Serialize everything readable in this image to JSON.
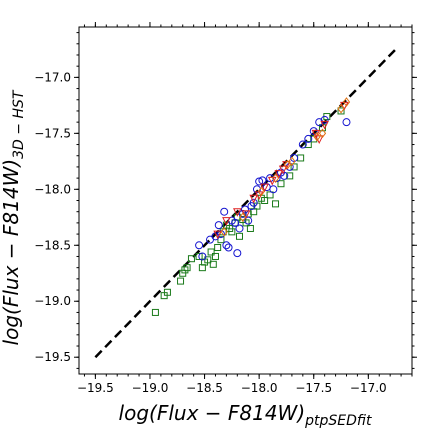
{
  "chart_data": {
    "type": "scatter",
    "title": "",
    "xlabel": "log(Flux − F814W)",
    "xlabel_subscript": "ptpSEDfit",
    "ylabel": "log(Flux − F814W)",
    "ylabel_subscript": "3D − HST",
    "xlim": [
      -19.65,
      -16.6
    ],
    "ylim": [
      -19.65,
      -16.55
    ],
    "xticks": [
      -19.5,
      -19.0,
      -18.5,
      -18.0,
      -17.5,
      -17.0
    ],
    "xtick_labels": [
      "−19.5",
      "−19.0",
      "−18.5",
      "−18.0",
      "−17.5",
      "−17.0"
    ],
    "yticks": [
      -19.5,
      -19.0,
      -18.5,
      -18.0,
      -17.5,
      -17.0
    ],
    "ytick_labels": [
      "−19.5",
      "−19.0",
      "−18.5",
      "−18.0",
      "−17.5",
      "−17.0"
    ],
    "grid": false,
    "reference_line": {
      "style": "dashed",
      "color": "#000000",
      "x": [
        -19.5,
        -16.75
      ],
      "y": [
        -19.5,
        -16.75
      ]
    },
    "series": [
      {
        "marker": "square",
        "color": "#1a7a1a",
        "points": [
          [
            -18.95,
            -19.1
          ],
          [
            -18.87,
            -18.95
          ],
          [
            -18.84,
            -18.92
          ],
          [
            -18.72,
            -18.82
          ],
          [
            -18.7,
            -18.75
          ],
          [
            -18.68,
            -18.72
          ],
          [
            -18.66,
            -18.7
          ],
          [
            -18.62,
            -18.62
          ],
          [
            -18.55,
            -18.6
          ],
          [
            -18.52,
            -18.7
          ],
          [
            -18.5,
            -18.65
          ],
          [
            -18.47,
            -18.63
          ],
          [
            -18.44,
            -18.56
          ],
          [
            -18.42,
            -18.67
          ],
          [
            -18.4,
            -18.6
          ],
          [
            -18.38,
            -18.52
          ],
          [
            -18.35,
            -18.45
          ],
          [
            -18.33,
            -18.38
          ],
          [
            -18.3,
            -18.32
          ],
          [
            -18.27,
            -18.35
          ],
          [
            -18.25,
            -18.38
          ],
          [
            -18.22,
            -18.3
          ],
          [
            -18.2,
            -18.25
          ],
          [
            -18.18,
            -18.42
          ],
          [
            -18.15,
            -18.27
          ],
          [
            -18.12,
            -18.3
          ],
          [
            -18.1,
            -18.22
          ],
          [
            -18.08,
            -18.35
          ],
          [
            -18.05,
            -18.2
          ],
          [
            -18.02,
            -18.15
          ],
          [
            -17.98,
            -18.08
          ],
          [
            -17.95,
            -18.1
          ],
          [
            -17.9,
            -18.05
          ],
          [
            -17.85,
            -18.13
          ],
          [
            -17.8,
            -17.95
          ],
          [
            -17.72,
            -17.88
          ],
          [
            -17.68,
            -17.8
          ],
          [
            -17.62,
            -17.72
          ],
          [
            -17.55,
            -17.6
          ],
          [
            -17.5,
            -17.55
          ],
          [
            -17.42,
            -17.45
          ],
          [
            -17.38,
            -17.35
          ],
          [
            -17.25,
            -17.3
          ]
        ]
      },
      {
        "marker": "circle",
        "color": "#1515d0",
        "points": [
          [
            -18.55,
            -18.5
          ],
          [
            -18.52,
            -18.6
          ],
          [
            -18.45,
            -18.45
          ],
          [
            -18.4,
            -18.42
          ],
          [
            -18.37,
            -18.32
          ],
          [
            -18.35,
            -18.4
          ],
          [
            -18.32,
            -18.2
          ],
          [
            -18.3,
            -18.5
          ],
          [
            -18.28,
            -18.52
          ],
          [
            -18.25,
            -18.28
          ],
          [
            -18.22,
            -18.3
          ],
          [
            -18.2,
            -18.57
          ],
          [
            -18.18,
            -18.35
          ],
          [
            -18.15,
            -18.22
          ],
          [
            -18.13,
            -18.18
          ],
          [
            -18.1,
            -18.28
          ],
          [
            -18.07,
            -18.15
          ],
          [
            -18.05,
            -18.12
          ],
          [
            -18.02,
            -18.0
          ],
          [
            -18.0,
            -17.93
          ],
          [
            -17.97,
            -17.92
          ],
          [
            -17.93,
            -17.98
          ],
          [
            -17.9,
            -17.9
          ],
          [
            -17.87,
            -18.0
          ],
          [
            -17.84,
            -17.9
          ],
          [
            -17.8,
            -17.85
          ],
          [
            -17.77,
            -17.88
          ],
          [
            -17.72,
            -17.8
          ],
          [
            -17.68,
            -17.72
          ],
          [
            -17.6,
            -17.6
          ],
          [
            -17.55,
            -17.55
          ],
          [
            -17.5,
            -17.48
          ],
          [
            -17.45,
            -17.4
          ],
          [
            -17.4,
            -17.38
          ],
          [
            -17.2,
            -17.4
          ]
        ]
      },
      {
        "marker": "triangle",
        "color": "#e02020",
        "points": [
          [
            -18.38,
            -18.4
          ],
          [
            -18.3,
            -18.28
          ],
          [
            -18.2,
            -18.2
          ],
          [
            -18.12,
            -18.22
          ],
          [
            -18.05,
            -18.08
          ],
          [
            -18.0,
            -18.05
          ],
          [
            -17.95,
            -17.98
          ],
          [
            -17.88,
            -17.92
          ],
          [
            -17.82,
            -17.86
          ],
          [
            -17.78,
            -17.82
          ],
          [
            -17.75,
            -17.78
          ],
          [
            -17.48,
            -17.5
          ],
          [
            -17.45,
            -17.55
          ],
          [
            -17.4,
            -17.42
          ],
          [
            -17.22,
            -17.25
          ]
        ]
      },
      {
        "marker": "diamond",
        "color": "#e07010",
        "points": [
          [
            -18.32,
            -18.38
          ],
          [
            -18.15,
            -18.25
          ],
          [
            -17.98,
            -18.02
          ],
          [
            -17.85,
            -17.9
          ],
          [
            -17.74,
            -17.78
          ],
          [
            -17.7,
            -17.75
          ],
          [
            -17.47,
            -17.53
          ],
          [
            -17.42,
            -17.5
          ],
          [
            -17.25,
            -17.28
          ],
          [
            -17.2,
            -17.22
          ]
        ]
      }
    ]
  }
}
